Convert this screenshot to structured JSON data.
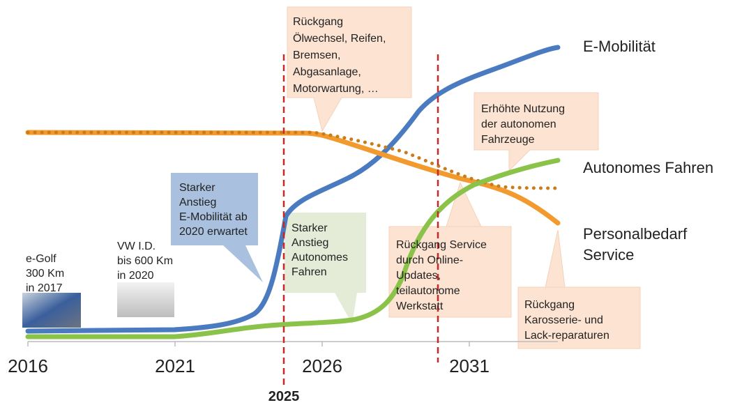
{
  "x_axis": {
    "ticks": [
      "2016",
      "2021",
      "2026",
      "2031"
    ],
    "highlight": "2025"
  },
  "series_labels": {
    "e_mobility": "E-Mobilität",
    "autonomous": "Autonomes Fahren",
    "personnel": [
      "Personalbedarf",
      "Service"
    ]
  },
  "vehicles": [
    {
      "lines": [
        "e-Golf",
        "300 Km",
        "in 2017"
      ]
    },
    {
      "lines": [
        "VW I.D.",
        "bis 600 Km",
        "in 2020"
      ]
    }
  ],
  "callouts": [
    {
      "lines": [
        "Starker",
        "Anstieg",
        "E-Mobilität ab",
        "2020 erwartet"
      ]
    },
    {
      "lines": [
        "Starker",
        "Anstieg",
        "Autonomes",
        "Fahren"
      ]
    },
    {
      "lines": [
        "Rückgang",
        "Ölwechsel, Reifen,",
        "Bremsen,",
        "Abgasanlage,",
        "Motorwartung, …"
      ]
    },
    {
      "lines": [
        "Erhöhte Nutzung",
        "der autonomen",
        "Fahrzeuge"
      ]
    },
    {
      "lines": [
        "Rückgang Service",
        "durch Online-",
        "Updates,",
        "teilautonome",
        "Werkstatt"
      ]
    },
    {
      "lines": [
        "Rückgang",
        "Karosserie- und",
        "Lack-reparaturen"
      ]
    }
  ]
}
